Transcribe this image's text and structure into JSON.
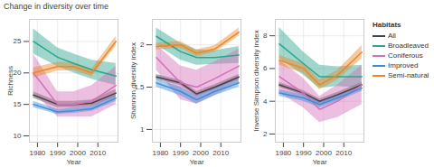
{
  "title": "Change in diversity over time",
  "legend_title": "Habitats",
  "legend": "right",
  "chart_data": [
    {
      "type": "line",
      "xlabel": "Year",
      "ylabel": "Richness",
      "x": [
        1978,
        1990,
        1998,
        2007,
        2019
      ],
      "xlim": [
        1976,
        2020
      ],
      "xticks": [
        1980,
        1990,
        2000,
        2010
      ],
      "ylim": [
        9,
        28.5
      ],
      "yticks": [
        10,
        15,
        20,
        25
      ],
      "grid": true,
      "series": [
        {
          "name": "All",
          "color": "#444444",
          "values": [
            16.5,
            15,
            15,
            15.2,
            16.8
          ],
          "lower": [
            16,
            14.5,
            14.5,
            14.7,
            16.2
          ],
          "upper": [
            17,
            15.5,
            15.5,
            15.7,
            17.4
          ]
        },
        {
          "name": "Broadleaved",
          "color": "#2ca58d",
          "values": [
            25,
            22.5,
            21.5,
            20.5,
            19.5
          ],
          "lower": [
            23,
            21,
            20,
            19,
            18
          ],
          "upper": [
            27,
            24,
            23,
            22,
            21.5
          ]
        },
        {
          "name": "Coniferous",
          "color": "#d46fb8",
          "values": [
            20,
            15,
            15,
            15.5,
            18
          ],
          "lower": [
            17,
            13,
            13,
            13,
            15
          ],
          "upper": [
            23,
            17,
            17,
            18,
            21
          ]
        },
        {
          "name": "Improved",
          "color": "#3b8fd9",
          "values": [
            15,
            13.8,
            14,
            14.3,
            16
          ],
          "lower": [
            14.5,
            13.4,
            13.6,
            13.9,
            15.5
          ],
          "upper": [
            15.5,
            14.2,
            14.4,
            14.7,
            16.5
          ]
        },
        {
          "name": "Semi-natural",
          "color": "#e8892b",
          "values": [
            20,
            21,
            21,
            20,
            25
          ],
          "lower": [
            19.2,
            20.3,
            20.4,
            19.4,
            24.2
          ],
          "upper": [
            20.8,
            21.7,
            21.6,
            20.6,
            25.8
          ]
        }
      ]
    },
    {
      "type": "line",
      "xlabel": "Year",
      "ylabel": "Shannon diversity index",
      "x": [
        1978,
        1990,
        1998,
        2007,
        2019
      ],
      "xlim": [
        1976,
        2020
      ],
      "xticks": [
        1980,
        1990,
        2000,
        2010
      ],
      "ylim": [
        0.85,
        2.3
      ],
      "yticks": [
        1,
        1.5,
        2
      ],
      "grid": true,
      "series": [
        {
          "name": "All",
          "color": "#444444",
          "values": [
            1.62,
            1.55,
            1.42,
            1.5,
            1.62
          ],
          "lower": [
            1.59,
            1.52,
            1.39,
            1.47,
            1.59
          ],
          "upper": [
            1.65,
            1.58,
            1.45,
            1.53,
            1.65
          ]
        },
        {
          "name": "Broadleaved",
          "color": "#2ca58d",
          "values": [
            2.1,
            1.92,
            1.85,
            1.85,
            1.88
          ],
          "lower": [
            2.0,
            1.82,
            1.76,
            1.77,
            1.78
          ],
          "upper": [
            2.2,
            2.02,
            1.94,
            1.93,
            1.98
          ]
        },
        {
          "name": "Coniferous",
          "color": "#d46fb8",
          "values": [
            1.85,
            1.55,
            1.5,
            1.6,
            1.75
          ],
          "lower": [
            1.7,
            1.35,
            1.3,
            1.4,
            1.55
          ],
          "upper": [
            2.0,
            1.75,
            1.7,
            1.8,
            1.95
          ]
        },
        {
          "name": "Improved",
          "color": "#3b8fd9",
          "values": [
            1.55,
            1.45,
            1.35,
            1.45,
            1.55
          ],
          "lower": [
            1.5,
            1.4,
            1.3,
            1.4,
            1.5
          ],
          "upper": [
            1.6,
            1.5,
            1.4,
            1.5,
            1.6
          ]
        },
        {
          "name": "Semi-natural",
          "color": "#e8892b",
          "values": [
            1.98,
            2.0,
            1.9,
            1.95,
            2.15
          ],
          "lower": [
            1.94,
            1.96,
            1.86,
            1.91,
            2.1
          ],
          "upper": [
            2.02,
            2.04,
            1.94,
            1.99,
            2.2
          ]
        }
      ]
    },
    {
      "type": "line",
      "xlabel": "Year",
      "ylabel": "Inverse Simpson diversity index",
      "x": [
        1978,
        1990,
        1998,
        2007,
        2019
      ],
      "xlim": [
        1976,
        2020
      ],
      "xticks": [
        1980,
        1990,
        2000,
        2010
      ],
      "ylim": [
        1.5,
        9
      ],
      "yticks": [
        2,
        4,
        6,
        8
      ],
      "grid": true,
      "series": [
        {
          "name": "All",
          "color": "#444444",
          "values": [
            5,
            4.5,
            4.0,
            4.4,
            5.0
          ],
          "lower": [
            4.85,
            4.35,
            3.85,
            4.25,
            4.85
          ],
          "upper": [
            5.15,
            4.65,
            4.15,
            4.55,
            5.15
          ]
        },
        {
          "name": "Broadleaved",
          "color": "#2ca58d",
          "values": [
            7.5,
            6.3,
            5.5,
            5.5,
            5.5
          ],
          "lower": [
            6.6,
            5.6,
            4.8,
            4.9,
            4.8
          ],
          "upper": [
            8.5,
            7.0,
            6.2,
            6.1,
            6.2
          ]
        },
        {
          "name": "Coniferous",
          "color": "#d46fb8",
          "values": [
            5.5,
            4.5,
            3.5,
            4.0,
            5.0
          ],
          "lower": [
            4.5,
            3.6,
            2.7,
            3.0,
            3.8
          ],
          "upper": [
            6.5,
            5.4,
            4.3,
            5.0,
            6.2
          ]
        },
        {
          "name": "Improved",
          "color": "#3b8fd9",
          "values": [
            4.5,
            4.2,
            3.8,
            4.2,
            4.8
          ],
          "lower": [
            4.3,
            4.0,
            3.6,
            4.0,
            4.6
          ],
          "upper": [
            4.7,
            4.4,
            4.0,
            4.4,
            5.0
          ]
        },
        {
          "name": "Semi-natural",
          "color": "#e8892b",
          "values": [
            6.5,
            6.0,
            5.0,
            5.6,
            7.0
          ],
          "lower": [
            6.2,
            5.7,
            4.7,
            5.3,
            6.6
          ],
          "upper": [
            6.8,
            6.3,
            5.3,
            5.9,
            7.4
          ]
        }
      ]
    }
  ]
}
